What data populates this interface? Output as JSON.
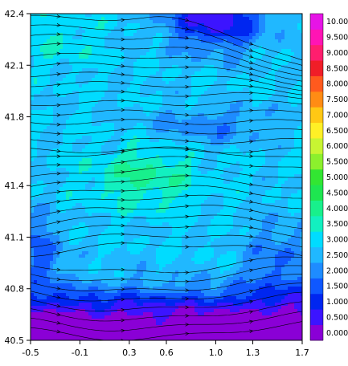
{
  "chart_data": {
    "type": "heatmap",
    "subtype": "filled contour with streamlines",
    "title": "",
    "xlabel": "",
    "ylabel": "",
    "xlim": [
      -0.5,
      1.7
    ],
    "ylim": [
      40.5,
      42.4
    ],
    "x_ticks": [
      "-0.5",
      "-0.1",
      "0.3",
      "0.6",
      "1.0",
      "1.3",
      "1.7"
    ],
    "y_ticks": [
      "42.4",
      "42.1",
      "41.8",
      "41.4",
      "41.1",
      "40.8",
      "40.5"
    ],
    "x_tick_values": [
      -0.5,
      -0.1,
      0.3,
      0.6,
      1.0,
      1.3,
      1.7
    ],
    "y_tick_values": [
      42.4,
      42.1,
      41.8,
      41.4,
      41.1,
      40.8,
      40.5
    ],
    "grid": false,
    "colorbar": {
      "position": "right",
      "levels": [
        "0.000",
        "0.500",
        "1.000",
        "1.500",
        "2.000",
        "2.500",
        "3.000",
        "3.500",
        "4.000",
        "4.500",
        "5.000",
        "5.500",
        "6.000",
        "6.500",
        "7.000",
        "7.500",
        "8.000",
        "8.500",
        "9.000",
        "9.500",
        "10.00"
      ],
      "colors": [
        "#8a00d6",
        "#3c14ff",
        "#0026f0",
        "#0f58ff",
        "#1e8cff",
        "#20b8ff",
        "#00dcff",
        "#12f0c0",
        "#18f08c",
        "#1ee650",
        "#32e632",
        "#8cf02d",
        "#c8f532",
        "#fff026",
        "#ffc814",
        "#ff8c14",
        "#ff5a1e",
        "#f01e28",
        "#ff1e6e",
        "#ff14b4",
        "#e614e6"
      ]
    },
    "field_summary": {
      "dominant_range": "2.5 - 4.0 over most of the domain",
      "maximum_region": "about 4.0 - 4.5 near x 0.2 to 0.6, y 41.35 to 41.55",
      "low_regions": [
        "0.0 - 1.5 in the south (y below 40.8)",
        "0.0 - 1.5 in the northeast (x 0.6 to 1.4, y above 42.15)"
      ]
    },
    "streamlines": {
      "direction": "west to east",
      "pattern": "zonal flow; veering southeast in the north-east corner, diverging around low-value areas in the south"
    }
  }
}
